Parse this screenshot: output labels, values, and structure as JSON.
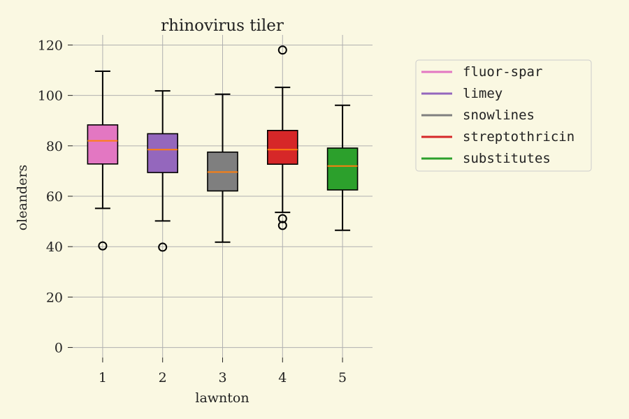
{
  "chart_data": {
    "type": "box",
    "title": "rhinovirus tiler",
    "xlabel": "lawnton",
    "ylabel": "oleanders",
    "ylim": [
      -4,
      124
    ],
    "yticks": [
      0,
      20,
      40,
      60,
      80,
      100,
      120
    ],
    "grid": true,
    "legend_position": "right",
    "colors": {
      "background": "#faf8e2",
      "grid": "#b0b0b0",
      "median": "#ff7f0e",
      "edge": "#000000"
    },
    "categories": [
      "1",
      "2",
      "3",
      "4",
      "5"
    ],
    "series": [
      {
        "name": "fluor-spar",
        "category": "1",
        "color": "#e377c2",
        "whisker_low": 55.2,
        "q1": 72.8,
        "median": 82,
        "q3": 88.3,
        "whisker_high": 109.6,
        "outliers": [
          40.3
        ]
      },
      {
        "name": "limey",
        "category": "2",
        "color": "#9467bd",
        "whisker_low": 50.2,
        "q1": 69.4,
        "median": 78.5,
        "q3": 84.8,
        "whisker_high": 101.8,
        "outliers": [
          39.8
        ]
      },
      {
        "name": "snowlines",
        "category": "3",
        "color": "#7f7f7f",
        "whisker_low": 41.8,
        "q1": 62.1,
        "median": 69.6,
        "q3": 77.5,
        "whisker_high": 100.5,
        "outliers": []
      },
      {
        "name": "streptothricin",
        "category": "4",
        "color": "#d62728",
        "whisker_low": 53.6,
        "q1": 72.7,
        "median": 78.5,
        "q3": 86.1,
        "whisker_high": 103.2,
        "outliers": [
          118,
          51.1,
          48.4
        ]
      },
      {
        "name": "substitutes",
        "category": "5",
        "color": "#2ca02c",
        "whisker_low": 46.5,
        "q1": 62.5,
        "median": 72,
        "q3": 79.1,
        "whisker_high": 96.1,
        "outliers": []
      }
    ]
  }
}
